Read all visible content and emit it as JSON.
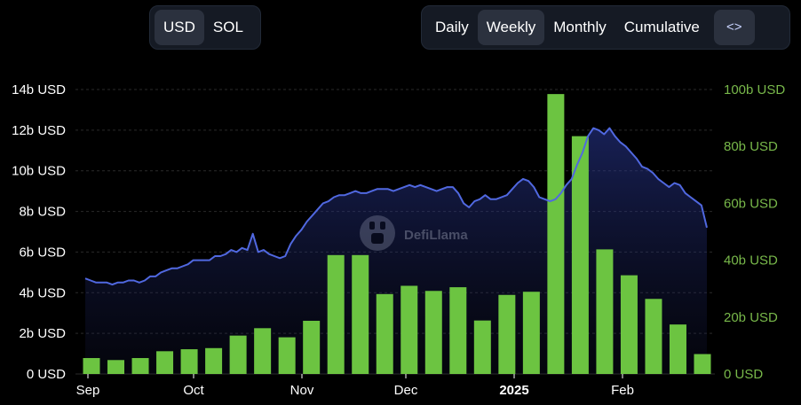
{
  "controls": {
    "currency_options": [
      {
        "label": "USD",
        "active": true
      },
      {
        "label": "SOL",
        "active": false
      }
    ],
    "period_options": [
      {
        "label": "Daily",
        "active": false
      },
      {
        "label": "Weekly",
        "active": true
      },
      {
        "label": "Monthly",
        "active": false
      },
      {
        "label": "Cumulative",
        "active": false
      }
    ],
    "embed_label": "<>"
  },
  "watermark": {
    "text": "DefiLlama"
  },
  "chart_data": {
    "type": "bar",
    "title": "",
    "legend": "none",
    "grid": true,
    "x_tick_labels": [
      {
        "label": "Sep",
        "bold": false
      },
      {
        "label": "Oct",
        "bold": false
      },
      {
        "label": "Nov",
        "bold": false
      },
      {
        "label": "Dec",
        "bold": false
      },
      {
        "label": "2025",
        "bold": true
      },
      {
        "label": "Feb",
        "bold": false
      }
    ],
    "y_left": {
      "ticks": [
        "0 USD",
        "2b USD",
        "4b USD",
        "6b USD",
        "8b USD",
        "10b USD",
        "12b USD",
        "14b USD"
      ],
      "min": 0,
      "max": 14,
      "color": "#ffffff"
    },
    "y_right": {
      "ticks": [
        "0 USD",
        "20b USD",
        "40b USD",
        "60b USD",
        "80b USD",
        "100b USD"
      ],
      "min": 0,
      "max": 100,
      "color": "#78b84a"
    },
    "bars": {
      "axis": "right",
      "color": "#6cc441",
      "values": [
        5.6,
        4.9,
        5.6,
        8.0,
        8.7,
        9.1,
        13.5,
        16.1,
        12.9,
        18.7,
        41.8,
        41.8,
        28.1,
        31.0,
        29.2,
        30.5,
        18.8,
        27.8,
        28.9,
        98.4,
        83.6,
        43.8,
        34.7,
        26.4,
        17.4,
        7.0
      ]
    },
    "line": {
      "axis": "left",
      "color": "#5068e0",
      "values": [
        4.7,
        4.6,
        4.5,
        4.5,
        4.5,
        4.4,
        4.5,
        4.5,
        4.6,
        4.6,
        4.5,
        4.6,
        4.8,
        4.8,
        5.0,
        5.1,
        5.2,
        5.2,
        5.3,
        5.4,
        5.6,
        5.6,
        5.6,
        5.6,
        5.8,
        5.8,
        5.9,
        6.1,
        6.0,
        6.2,
        6.1,
        6.9,
        6.0,
        6.1,
        5.9,
        5.8,
        5.7,
        5.8,
        6.4,
        6.8,
        7.1,
        7.5,
        7.8,
        8.1,
        8.4,
        8.5,
        8.7,
        8.8,
        8.8,
        8.9,
        9.0,
        8.9,
        8.9,
        9.0,
        9.1,
        9.1,
        9.1,
        9.0,
        9.1,
        9.2,
        9.3,
        9.2,
        9.3,
        9.2,
        9.1,
        9.0,
        9.1,
        9.2,
        9.2,
        8.9,
        8.4,
        8.2,
        8.5,
        8.6,
        8.8,
        8.6,
        8.6,
        8.7,
        8.8,
        9.1,
        9.4,
        9.6,
        9.5,
        9.2,
        8.7,
        8.6,
        8.5,
        8.6,
        8.9,
        9.3,
        9.6,
        10.3,
        10.9,
        11.7,
        12.1,
        12.0,
        11.8,
        12.1,
        11.7,
        11.4,
        11.2,
        10.9,
        10.6,
        10.2,
        10.1,
        9.9,
        9.6,
        9.4,
        9.2,
        9.4,
        9.3,
        8.9,
        8.7,
        8.5,
        8.3,
        7.2
      ]
    }
  }
}
